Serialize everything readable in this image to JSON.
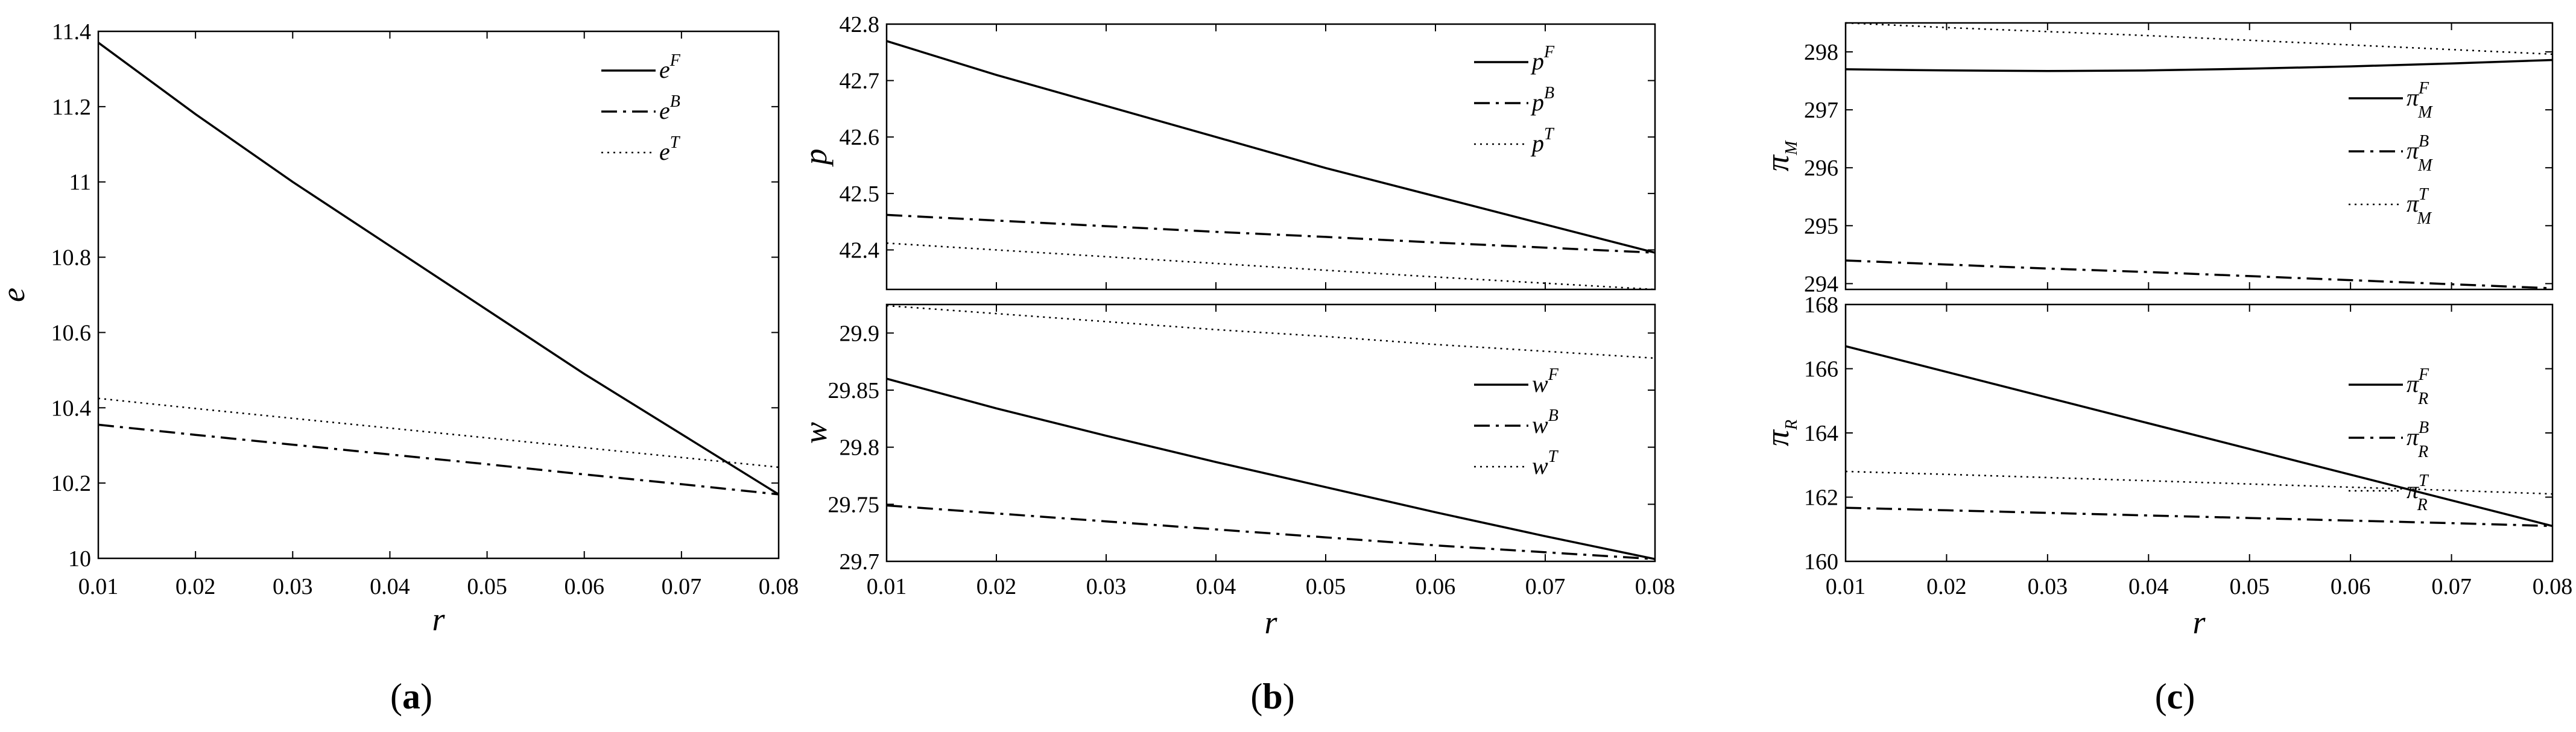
{
  "chart_data": [
    {
      "type": "line",
      "panel": "a",
      "caption_label": "a",
      "xlabel": "r",
      "ylabel": "e",
      "xlim": [
        0.01,
        0.08
      ],
      "ylim": [
        10.0,
        11.4
      ],
      "xticks": [
        "0.01",
        "0.02",
        "0.03",
        "0.04",
        "0.05",
        "0.06",
        "0.07",
        "0.08"
      ],
      "yticks": [
        "10",
        "10.2",
        "10.4",
        "10.6",
        "10.8",
        "11",
        "11.2",
        "11.4"
      ],
      "legend_position": "top-right",
      "x": [
        0.01,
        0.02,
        0.03,
        0.04,
        0.05,
        0.06,
        0.07,
        0.08
      ],
      "series": [
        {
          "name_base": "e",
          "name_sup": "F",
          "dash": "solid",
          "values": [
            11.37,
            11.18,
            11.0,
            10.83,
            10.66,
            10.49,
            10.33,
            10.17
          ]
        },
        {
          "name_base": "e",
          "name_sup": "B",
          "dash": "dashdot",
          "values": [
            10.355,
            10.328,
            10.302,
            10.276,
            10.25,
            10.223,
            10.197,
            10.17
          ]
        },
        {
          "name_base": "e",
          "name_sup": "T",
          "dash": "dotted",
          "values": [
            10.425,
            10.398,
            10.372,
            10.346,
            10.32,
            10.294,
            10.268,
            10.242
          ]
        }
      ]
    },
    {
      "type": "line",
      "panel": "b-top",
      "caption_label": "b",
      "xlabel": "",
      "ylabel": "p",
      "xlim": [
        0.01,
        0.08
      ],
      "ylim": [
        42.33,
        42.8
      ],
      "xticks": [],
      "yticks": [
        "42.4",
        "42.5",
        "42.6",
        "42.7",
        "42.8"
      ],
      "legend_position": "top-right",
      "x": [
        0.01,
        0.02,
        0.03,
        0.04,
        0.05,
        0.06,
        0.07,
        0.08
      ],
      "series": [
        {
          "name_base": "p",
          "name_sup": "F",
          "dash": "solid",
          "values": [
            42.77,
            42.71,
            42.655,
            42.6,
            42.545,
            42.495,
            42.445,
            42.395
          ]
        },
        {
          "name_base": "p",
          "name_sup": "B",
          "dash": "dashdot",
          "values": [
            42.462,
            42.452,
            42.442,
            42.432,
            42.423,
            42.413,
            42.404,
            42.395
          ]
        },
        {
          "name_base": "p",
          "name_sup": "T",
          "dash": "dotted",
          "values": [
            42.412,
            42.4,
            42.388,
            42.376,
            42.364,
            42.352,
            42.341,
            42.33
          ]
        }
      ]
    },
    {
      "type": "line",
      "panel": "b-bottom",
      "xlabel": "r",
      "ylabel": "w",
      "xlim": [
        0.01,
        0.08
      ],
      "ylim": [
        29.7,
        29.925
      ],
      "xticks": [
        "0.01",
        "0.02",
        "0.03",
        "0.04",
        "0.05",
        "0.06",
        "0.07",
        "0.08"
      ],
      "yticks": [
        "29.7",
        "29.75",
        "29.8",
        "29.85",
        "29.9"
      ],
      "legend_position": "right",
      "x": [
        0.01,
        0.02,
        0.03,
        0.04,
        0.05,
        0.06,
        0.07,
        0.08
      ],
      "series": [
        {
          "name_base": "w",
          "name_sup": "F",
          "dash": "solid",
          "values": [
            29.86,
            29.834,
            29.81,
            29.787,
            29.765,
            29.743,
            29.722,
            29.702
          ]
        },
        {
          "name_base": "w",
          "name_sup": "B",
          "dash": "dashdot",
          "values": [
            29.749,
            29.742,
            29.735,
            29.728,
            29.721,
            29.714,
            29.708,
            29.702
          ]
        },
        {
          "name_base": "w",
          "name_sup": "T",
          "dash": "dotted",
          "values": [
            29.924,
            29.917,
            29.91,
            29.903,
            29.897,
            29.89,
            29.884,
            29.878
          ]
        }
      ]
    },
    {
      "type": "line",
      "panel": "c-top",
      "caption_label": "c",
      "xlabel": "",
      "ylabel_base": "π",
      "ylabel_sub": "M",
      "xlim": [
        0.01,
        0.08
      ],
      "ylim": [
        293.9,
        298.5
      ],
      "xticks": [],
      "yticks": [
        "294",
        "295",
        "296",
        "297",
        "298"
      ],
      "legend_position": "right",
      "x": [
        0.01,
        0.02,
        0.03,
        0.04,
        0.05,
        0.06,
        0.07,
        0.08
      ],
      "series": [
        {
          "name_base": "π",
          "name_sup": "F",
          "name_sub": "M",
          "dash": "solid",
          "values": [
            297.7,
            297.68,
            297.67,
            297.68,
            297.71,
            297.75,
            297.8,
            297.86
          ]
        },
        {
          "name_base": "π",
          "name_sup": "B",
          "name_sub": "M",
          "dash": "dashdot",
          "values": [
            294.4,
            294.33,
            294.26,
            294.2,
            294.13,
            294.06,
            293.99,
            293.92
          ]
        },
        {
          "name_base": "π",
          "name_sup": "T",
          "name_sub": "M",
          "dash": "dotted",
          "values": [
            298.5,
            298.42,
            298.35,
            298.28,
            298.2,
            298.12,
            298.04,
            297.96
          ]
        }
      ]
    },
    {
      "type": "line",
      "panel": "c-bottom",
      "xlabel": "r",
      "ylabel_base": "π",
      "ylabel_sub": "R",
      "xlim": [
        0.01,
        0.08
      ],
      "ylim": [
        160,
        168
      ],
      "xticks": [
        "0.01",
        "0.02",
        "0.03",
        "0.04",
        "0.05",
        "0.06",
        "0.07",
        "0.08"
      ],
      "yticks": [
        "160",
        "162",
        "164",
        "166",
        "168"
      ],
      "legend_position": "right",
      "x": [
        0.01,
        0.02,
        0.03,
        0.04,
        0.05,
        0.06,
        0.07,
        0.08
      ],
      "series": [
        {
          "name_base": "π",
          "name_sup": "F",
          "name_sub": "R",
          "dash": "solid",
          "values": [
            166.7,
            165.9,
            165.1,
            164.3,
            163.5,
            162.7,
            161.9,
            161.1
          ]
        },
        {
          "name_base": "π",
          "name_sup": "B",
          "name_sub": "R",
          "dash": "dashdot",
          "values": [
            161.67,
            161.59,
            161.51,
            161.43,
            161.35,
            161.27,
            161.19,
            161.1
          ]
        },
        {
          "name_base": "π",
          "name_sup": "T",
          "name_sub": "R",
          "dash": "dotted",
          "values": [
            162.8,
            162.71,
            162.61,
            162.51,
            162.41,
            162.31,
            162.21,
            162.1
          ]
        }
      ]
    }
  ]
}
